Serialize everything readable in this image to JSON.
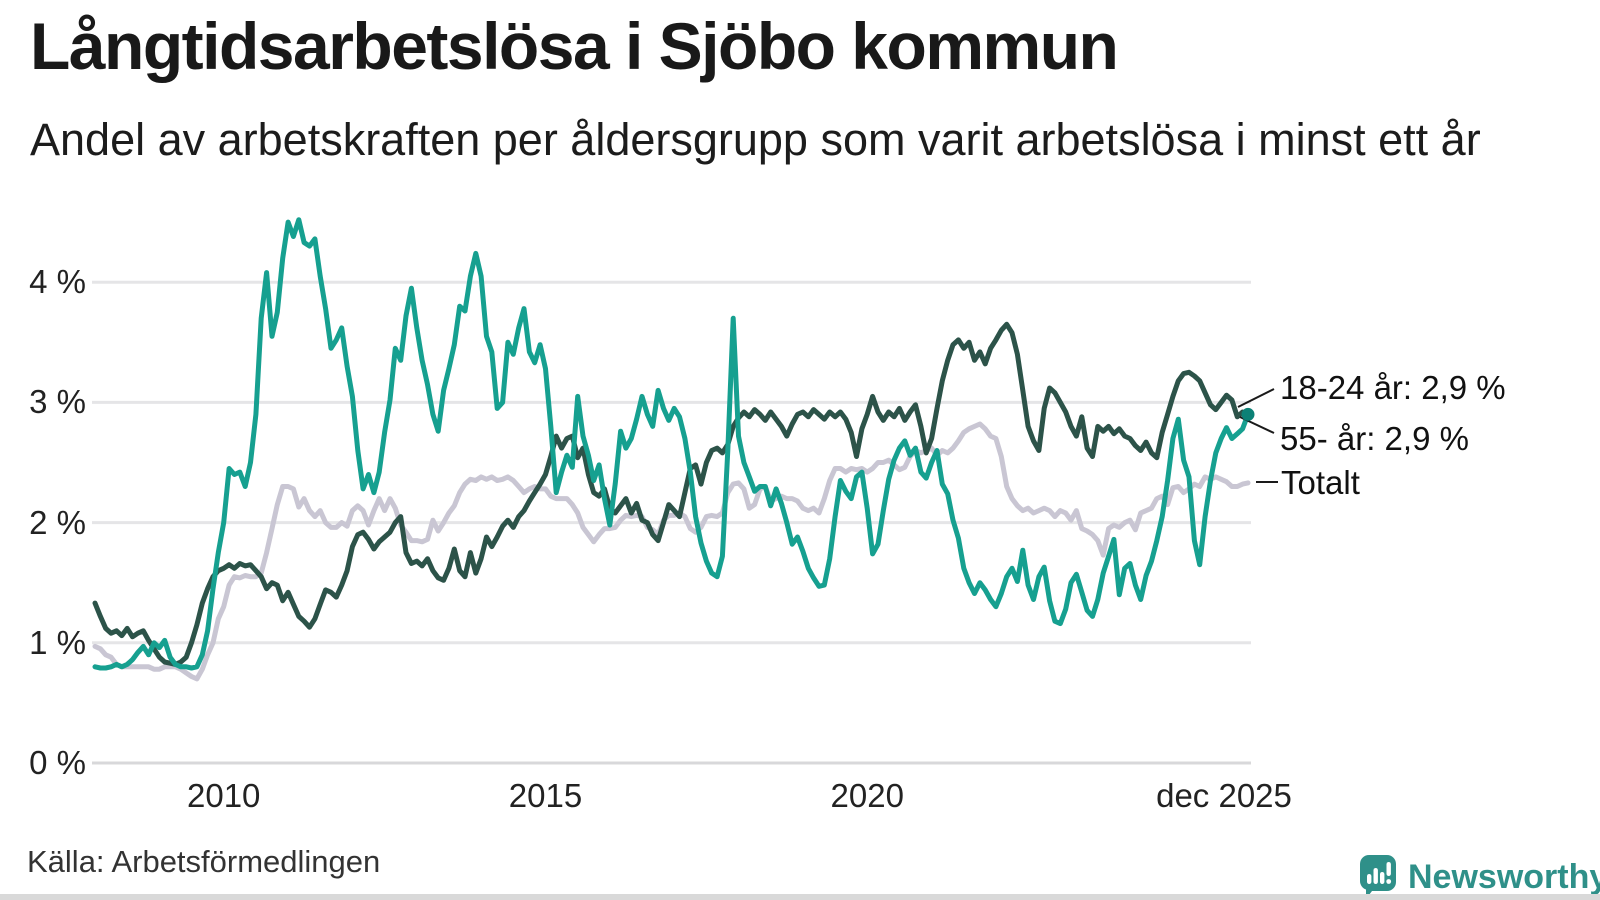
{
  "header": {
    "title": "Långtidsarbetslösa i Sjöbo kommun",
    "subtitle": "Andel av arbetskraften per åldersgrupp som varit arbetslösa i minst ett år"
  },
  "footer": {
    "source": "Källa: Arbetsförmedlingen",
    "brand": "Newsworthy"
  },
  "colors": {
    "series_18_24": "#16a090",
    "series_55": "#2c5349",
    "series_total": "#c9c6d3",
    "endpoint_dot": "#0c8176",
    "gridline": "#e5e5e7",
    "gridline_zero": "#d8d8da",
    "brand_teal": "#2f9089"
  },
  "chart_data": {
    "type": "line",
    "title": "Långtidsarbetslösa i Sjöbo kommun",
    "subtitle": "Andel av arbetskraften per åldersgrupp som varit arbetslösa i minst ett år",
    "unit": "%",
    "x_start_year": 2008,
    "x_end": "dec 2025",
    "months_per_point": 1,
    "ylim": [
      0,
      4.6
    ],
    "grid": "horizontal",
    "y_ticks": [
      {
        "value": 4,
        "label": "4 %"
      },
      {
        "value": 3,
        "label": "3 %"
      },
      {
        "value": 2,
        "label": "2 %"
      },
      {
        "value": 1,
        "label": "1 %"
      },
      {
        "value": 0,
        "label": "0 %"
      }
    ],
    "x_ticks": [
      {
        "month_index": 24,
        "label": "2010"
      },
      {
        "month_index": 84,
        "label": "2015"
      },
      {
        "month_index": 144,
        "label": "2020"
      },
      {
        "month_index": 215,
        "label": "dec 2025"
      }
    ],
    "annotations": [
      {
        "label": "18-24 år: 2,9 %",
        "series": "18-24 år"
      },
      {
        "label": "55- år: 2,9 %",
        "series": "55- år"
      },
      {
        "label": "Totalt",
        "series": "Totalt"
      }
    ],
    "endpoint": {
      "series": "18-24 år",
      "value": 2.9
    },
    "series": [
      {
        "name": "18-24 år",
        "color": "#16a090",
        "values": [
          0.8,
          0.79,
          0.79,
          0.8,
          0.82,
          0.8,
          0.82,
          0.86,
          0.92,
          0.97,
          0.9,
          1.0,
          0.96,
          1.02,
          0.88,
          0.82,
          0.8,
          0.8,
          0.79,
          0.8,
          0.9,
          1.1,
          1.45,
          1.75,
          2.0,
          2.45,
          2.4,
          2.42,
          2.3,
          2.5,
          2.9,
          3.7,
          4.08,
          3.55,
          3.75,
          4.2,
          4.5,
          4.38,
          4.52,
          4.33,
          4.3,
          4.36,
          4.05,
          3.78,
          3.45,
          3.52,
          3.62,
          3.3,
          3.05,
          2.6,
          2.28,
          2.4,
          2.25,
          2.42,
          2.75,
          3.02,
          3.45,
          3.35,
          3.72,
          3.95,
          3.62,
          3.35,
          3.15,
          2.9,
          2.76,
          3.1,
          3.28,
          3.48,
          3.8,
          3.76,
          4.05,
          4.24,
          4.05,
          3.55,
          3.42,
          2.95,
          3.0,
          3.5,
          3.4,
          3.62,
          3.78,
          3.42,
          3.33,
          3.48,
          3.28,
          2.8,
          2.25,
          2.42,
          2.56,
          2.46,
          3.05,
          2.72,
          2.56,
          2.35,
          2.48,
          2.2,
          1.98,
          2.32,
          2.76,
          2.62,
          2.7,
          2.86,
          3.05,
          2.9,
          2.8,
          3.1,
          2.95,
          2.85,
          2.95,
          2.88,
          2.7,
          2.42,
          2.05,
          1.83,
          1.68,
          1.58,
          1.55,
          1.72,
          2.6,
          3.7,
          2.72,
          2.5,
          2.38,
          2.26,
          2.3,
          2.3,
          2.14,
          2.28,
          2.16,
          2.0,
          1.82,
          1.88,
          1.76,
          1.62,
          1.54,
          1.47,
          1.48,
          1.7,
          2.05,
          2.35,
          2.26,
          2.2,
          2.38,
          2.42,
          2.12,
          1.74,
          1.82,
          2.1,
          2.36,
          2.52,
          2.62,
          2.68,
          2.56,
          2.62,
          2.42,
          2.37,
          2.5,
          2.6,
          2.32,
          2.24,
          2.02,
          1.87,
          1.62,
          1.5,
          1.41,
          1.5,
          1.44,
          1.36,
          1.3,
          1.41,
          1.55,
          1.62,
          1.51,
          1.77,
          1.48,
          1.36,
          1.55,
          1.63,
          1.35,
          1.18,
          1.16,
          1.28,
          1.5,
          1.57,
          1.42,
          1.27,
          1.22,
          1.36,
          1.58,
          1.72,
          1.86,
          1.4,
          1.62,
          1.66,
          1.48,
          1.36,
          1.56,
          1.68,
          1.85,
          2.05,
          2.35,
          2.7,
          2.86,
          2.52,
          2.38,
          1.85,
          1.65,
          2.05,
          2.35,
          2.58,
          2.7,
          2.79,
          2.7,
          2.74,
          2.78,
          2.9
        ]
      },
      {
        "name": "55- år",
        "color": "#2c5349",
        "values": [
          1.33,
          1.22,
          1.12,
          1.08,
          1.1,
          1.06,
          1.12,
          1.05,
          1.08,
          1.1,
          1.02,
          0.95,
          0.88,
          0.84,
          0.83,
          0.82,
          0.84,
          0.88,
          1.0,
          1.15,
          1.33,
          1.45,
          1.55,
          1.6,
          1.62,
          1.65,
          1.62,
          1.66,
          1.64,
          1.65,
          1.6,
          1.55,
          1.45,
          1.5,
          1.48,
          1.35,
          1.42,
          1.32,
          1.22,
          1.18,
          1.13,
          1.2,
          1.32,
          1.44,
          1.42,
          1.38,
          1.48,
          1.6,
          1.8,
          1.9,
          1.92,
          1.86,
          1.78,
          1.84,
          1.88,
          1.92,
          2.0,
          2.05,
          1.75,
          1.66,
          1.68,
          1.64,
          1.7,
          1.6,
          1.54,
          1.52,
          1.62,
          1.78,
          1.6,
          1.55,
          1.75,
          1.58,
          1.7,
          1.88,
          1.8,
          1.88,
          1.97,
          2.02,
          1.96,
          2.05,
          2.1,
          2.18,
          2.25,
          2.32,
          2.4,
          2.55,
          2.72,
          2.62,
          2.7,
          2.72,
          2.54,
          2.62,
          2.4,
          2.25,
          2.22,
          2.28,
          2.12,
          2.08,
          2.14,
          2.2,
          2.08,
          2.16,
          2.02,
          2.0,
          1.9,
          1.85,
          2.0,
          2.15,
          2.1,
          2.05,
          2.25,
          2.45,
          2.48,
          2.32,
          2.5,
          2.6,
          2.62,
          2.58,
          2.65,
          2.8,
          2.87,
          2.92,
          2.88,
          2.94,
          2.9,
          2.85,
          2.92,
          2.86,
          2.8,
          2.72,
          2.82,
          2.9,
          2.92,
          2.88,
          2.94,
          2.9,
          2.86,
          2.92,
          2.88,
          2.92,
          2.86,
          2.75,
          2.55,
          2.78,
          2.9,
          3.05,
          2.92,
          2.85,
          2.92,
          2.88,
          2.95,
          2.85,
          2.92,
          2.98,
          2.8,
          2.58,
          2.7,
          2.95,
          3.18,
          3.35,
          3.48,
          3.52,
          3.45,
          3.5,
          3.35,
          3.42,
          3.32,
          3.45,
          3.52,
          3.6,
          3.65,
          3.58,
          3.4,
          3.1,
          2.8,
          2.68,
          2.6,
          2.95,
          3.12,
          3.08,
          3.0,
          2.92,
          2.8,
          2.72,
          2.88,
          2.62,
          2.55,
          2.8,
          2.76,
          2.8,
          2.74,
          2.78,
          2.72,
          2.7,
          2.64,
          2.6,
          2.67,
          2.58,
          2.54,
          2.75,
          2.9,
          3.05,
          3.18,
          3.24,
          3.25,
          3.22,
          3.18,
          3.08,
          2.98,
          2.94,
          3.0,
          3.06,
          3.02,
          2.88,
          2.92,
          2.9
        ]
      },
      {
        "name": "Totalt",
        "color": "#c9c6d3",
        "values": [
          0.97,
          0.95,
          0.9,
          0.88,
          0.82,
          0.8,
          0.8,
          0.8,
          0.8,
          0.8,
          0.8,
          0.78,
          0.78,
          0.8,
          0.8,
          0.8,
          0.78,
          0.75,
          0.72,
          0.7,
          0.78,
          0.9,
          1.0,
          1.2,
          1.3,
          1.48,
          1.55,
          1.54,
          1.56,
          1.55,
          1.55,
          1.58,
          1.75,
          1.95,
          2.15,
          2.3,
          2.3,
          2.28,
          2.13,
          2.2,
          2.1,
          2.05,
          2.1,
          2.0,
          1.96,
          1.96,
          2.0,
          1.97,
          2.1,
          2.14,
          2.1,
          1.98,
          2.1,
          2.2,
          2.1,
          2.2,
          2.12,
          1.98,
          1.92,
          1.85,
          1.85,
          1.84,
          1.86,
          2.02,
          1.93,
          2.0,
          2.08,
          2.14,
          2.25,
          2.32,
          2.36,
          2.35,
          2.38,
          2.36,
          2.38,
          2.35,
          2.36,
          2.38,
          2.35,
          2.3,
          2.25,
          2.28,
          2.3,
          2.28,
          2.28,
          2.22,
          2.2,
          2.2,
          2.2,
          2.15,
          2.08,
          1.96,
          1.9,
          1.84,
          1.9,
          1.95,
          1.95,
          1.96,
          2.02,
          2.06,
          2.05,
          2.06,
          2.05,
          1.96,
          1.94,
          1.9,
          2.02,
          2.06,
          2.06,
          2.08,
          2.05,
          1.95,
          1.92,
          1.96,
          2.05,
          2.06,
          2.05,
          2.08,
          2.25,
          2.32,
          2.33,
          2.28,
          2.12,
          2.15,
          2.28,
          2.3,
          2.18,
          2.2,
          2.22,
          2.2,
          2.2,
          2.18,
          2.12,
          2.1,
          2.12,
          2.08,
          2.2,
          2.35,
          2.45,
          2.45,
          2.42,
          2.45,
          2.44,
          2.45,
          2.42,
          2.45,
          2.5,
          2.5,
          2.52,
          2.48,
          2.44,
          2.46,
          2.55,
          2.6,
          2.58,
          2.6,
          2.62,
          2.56,
          2.6,
          2.58,
          2.62,
          2.68,
          2.75,
          2.78,
          2.8,
          2.82,
          2.78,
          2.72,
          2.7,
          2.55,
          2.3,
          2.2,
          2.14,
          2.1,
          2.12,
          2.08,
          2.1,
          2.12,
          2.1,
          2.05,
          2.1,
          2.08,
          2.02,
          2.1,
          1.95,
          1.93,
          1.9,
          1.85,
          1.73,
          1.95,
          1.98,
          1.96,
          2.0,
          2.02,
          1.94,
          2.08,
          2.1,
          2.12,
          2.2,
          2.22,
          2.15,
          2.29,
          2.3,
          2.25,
          2.28,
          2.32,
          2.3,
          2.38,
          2.36,
          2.38,
          2.36,
          2.34,
          2.3,
          2.3,
          2.32,
          2.33
        ]
      }
    ]
  }
}
